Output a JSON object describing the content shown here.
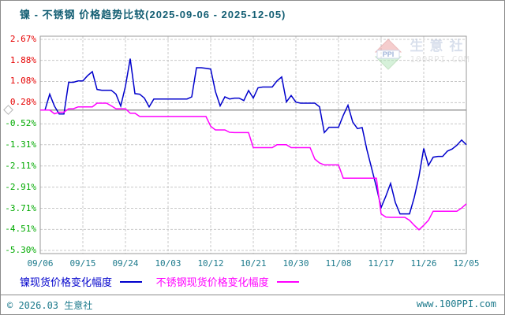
{
  "title": "镍 - 不锈钢 价格趋势比较(2025-09-06 - 2025-12-05)",
  "watermark": {
    "logo_text": "PPI",
    "site_name": "生意社",
    "site_domain": "100PPI.COM"
  },
  "legend": {
    "items": [
      {
        "label": "镍现货价格变化幅度",
        "color": "#0000cc"
      },
      {
        "label": "不锈钢现货价格变化幅度",
        "color": "#ff00ff"
      }
    ]
  },
  "footer": {
    "left": "© 2026.03 生意社",
    "right": "www.100PPI.com"
  },
  "colors": {
    "title": "#135e73",
    "x_label": "#1d7a8c",
    "y_label_positive": "#e60000",
    "y_label_negative": "#00aa00",
    "grid": "#c8c8c8",
    "plot_border": "#999999",
    "zero_line": "#999999",
    "series_nickel": "#0000cc",
    "series_stainless": "#ff00ff"
  },
  "chart_data": {
    "type": "line",
    "title": "镍 - 不锈钢 价格趋势比较(2025-09-06 - 2025-12-05)",
    "date_range": [
      "2025-09-06",
      "2025-12-05"
    ],
    "x_unit": "day",
    "x_max_day": 90,
    "x_tick_days": [
      0,
      9,
      18,
      27,
      36,
      45,
      54,
      63,
      72,
      81,
      90
    ],
    "x_tick_labels": [
      "09/06",
      "09/15",
      "09/24",
      "10/03",
      "10/12",
      "10/21",
      "10/30",
      "11/08",
      "11/17",
      "11/26",
      "12/05"
    ],
    "y_ticks": [
      2.67,
      1.88,
      1.08,
      0.28,
      -0.52,
      -1.31,
      -2.11,
      -2.91,
      -3.71,
      -4.51,
      -5.3
    ],
    "y_tick_labels": [
      "2.67%",
      "1.88%",
      "1.08%",
      "0.28%",
      "-0.52%",
      "-1.31%",
      "-2.11%",
      "-2.91%",
      "-3.71%",
      "-4.51%",
      "-5.30%"
    ],
    "ylim": [
      -5.3,
      2.67
    ],
    "grid": "dashed",
    "zero_line": true,
    "legend_position": "bottom",
    "series": [
      {
        "name": "镍现货价格变化幅度",
        "color": "#0000cc",
        "values": [
          0.0,
          0.0,
          0.6,
          0.15,
          -0.15,
          -0.15,
          1.05,
          1.05,
          1.1,
          1.1,
          1.3,
          1.45,
          0.78,
          0.75,
          0.75,
          0.75,
          0.6,
          0.15,
          0.9,
          1.94,
          0.62,
          0.6,
          0.45,
          0.12,
          0.42,
          0.42,
          0.42,
          0.42,
          0.42,
          0.42,
          0.42,
          0.42,
          0.5,
          1.6,
          1.6,
          1.58,
          1.55,
          0.7,
          0.16,
          0.5,
          0.42,
          0.45,
          0.45,
          0.36,
          0.74,
          0.45,
          0.84,
          0.87,
          0.87,
          0.87,
          1.1,
          1.25,
          0.31,
          0.55,
          0.3,
          0.26,
          0.26,
          0.26,
          0.26,
          0.12,
          -0.85,
          -0.65,
          -0.65,
          -0.65,
          -0.2,
          0.18,
          -0.45,
          -0.7,
          -0.66,
          -1.5,
          -2.2,
          -2.9,
          -3.68,
          -3.25,
          -2.77,
          -3.49,
          -3.92,
          -3.92,
          -3.92,
          -3.3,
          -2.5,
          -1.45,
          -2.09,
          -1.78,
          -1.75,
          -1.75,
          -1.55,
          -1.47,
          -1.33,
          -1.13,
          -1.31
        ]
      },
      {
        "name": "不锈钢现货价格变化幅度",
        "color": "#ff00ff",
        "values": [
          0.0,
          0.0,
          0.0,
          -0.14,
          -0.08,
          -0.08,
          0.05,
          0.05,
          0.12,
          0.12,
          0.12,
          0.12,
          0.26,
          0.26,
          0.26,
          0.16,
          0.05,
          0.05,
          0.05,
          -0.12,
          -0.12,
          -0.24,
          -0.24,
          -0.24,
          -0.24,
          -0.24,
          -0.24,
          -0.24,
          -0.24,
          -0.24,
          -0.24,
          -0.24,
          -0.24,
          -0.24,
          -0.24,
          -0.24,
          -0.61,
          -0.75,
          -0.75,
          -0.75,
          -0.84,
          -0.85,
          -0.85,
          -0.85,
          -0.85,
          -1.42,
          -1.42,
          -1.42,
          -1.42,
          -1.42,
          -1.31,
          -1.31,
          -1.31,
          -1.42,
          -1.42,
          -1.42,
          -1.42,
          -1.42,
          -1.85,
          -2.0,
          -2.07,
          -2.07,
          -2.07,
          -2.07,
          -2.57,
          -2.57,
          -2.57,
          -2.57,
          -2.57,
          -2.57,
          -2.57,
          -2.57,
          -3.92,
          -4.04,
          -4.05,
          -4.05,
          -4.05,
          -4.05,
          -4.16,
          -4.35,
          -4.52,
          -4.35,
          -4.16,
          -3.82,
          -3.82,
          -3.82,
          -3.82,
          -3.82,
          -3.82,
          -3.7,
          -3.54
        ]
      }
    ]
  }
}
